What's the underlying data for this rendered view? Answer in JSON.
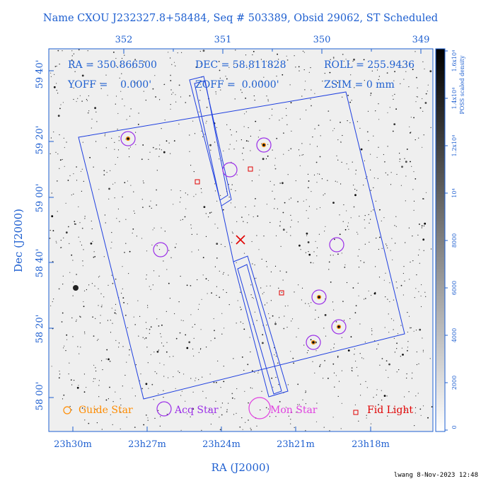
{
  "title": "Name CXOU J232327.8+58484, Seq # 503389, Obsid 29062, ST Scheduled",
  "info": {
    "ra": "RA = 350.866500",
    "dec": "DEC = 58.811828",
    "roll": "ROLL = 255.9436",
    "yoff": "YOFF =    0.000'",
    "zoff": "ZOFF =  0.0000'",
    "zsim": "ZSIM = 0 mm"
  },
  "axes": {
    "top_ticks": [
      "352",
      "351",
      "350",
      "349"
    ],
    "bottom_ticks": [
      "23h30m",
      "23h27m",
      "23h24m",
      "23h21m",
      "23h18m"
    ],
    "left_ticks": [
      "59 40'",
      "59 20'",
      "59 00'",
      "58 40'",
      "58 20'",
      "58 00'"
    ],
    "xlabel": "RA (J2000)",
    "ylabel": "Dec (J2000)"
  },
  "colorbar": {
    "label": "POSS scaled density",
    "ticks": [
      "0",
      "2000",
      "4000",
      "6000",
      "8000",
      "10⁴",
      "1.2x10⁴",
      "1.4x10⁴",
      "1.6x10⁴"
    ]
  },
  "legend": {
    "guide": "Guide Star",
    "acq": "Acq Star",
    "mon": "Mon Star",
    "fid": "Fid Light"
  },
  "colors": {
    "frame": "#1e5fd0",
    "guide": "#ff8c00",
    "acq": "#9b2fe8",
    "mon": "#e040e0",
    "fid": "#e00000"
  },
  "footer": "lwang  8-Nov-2023 12:48"
}
